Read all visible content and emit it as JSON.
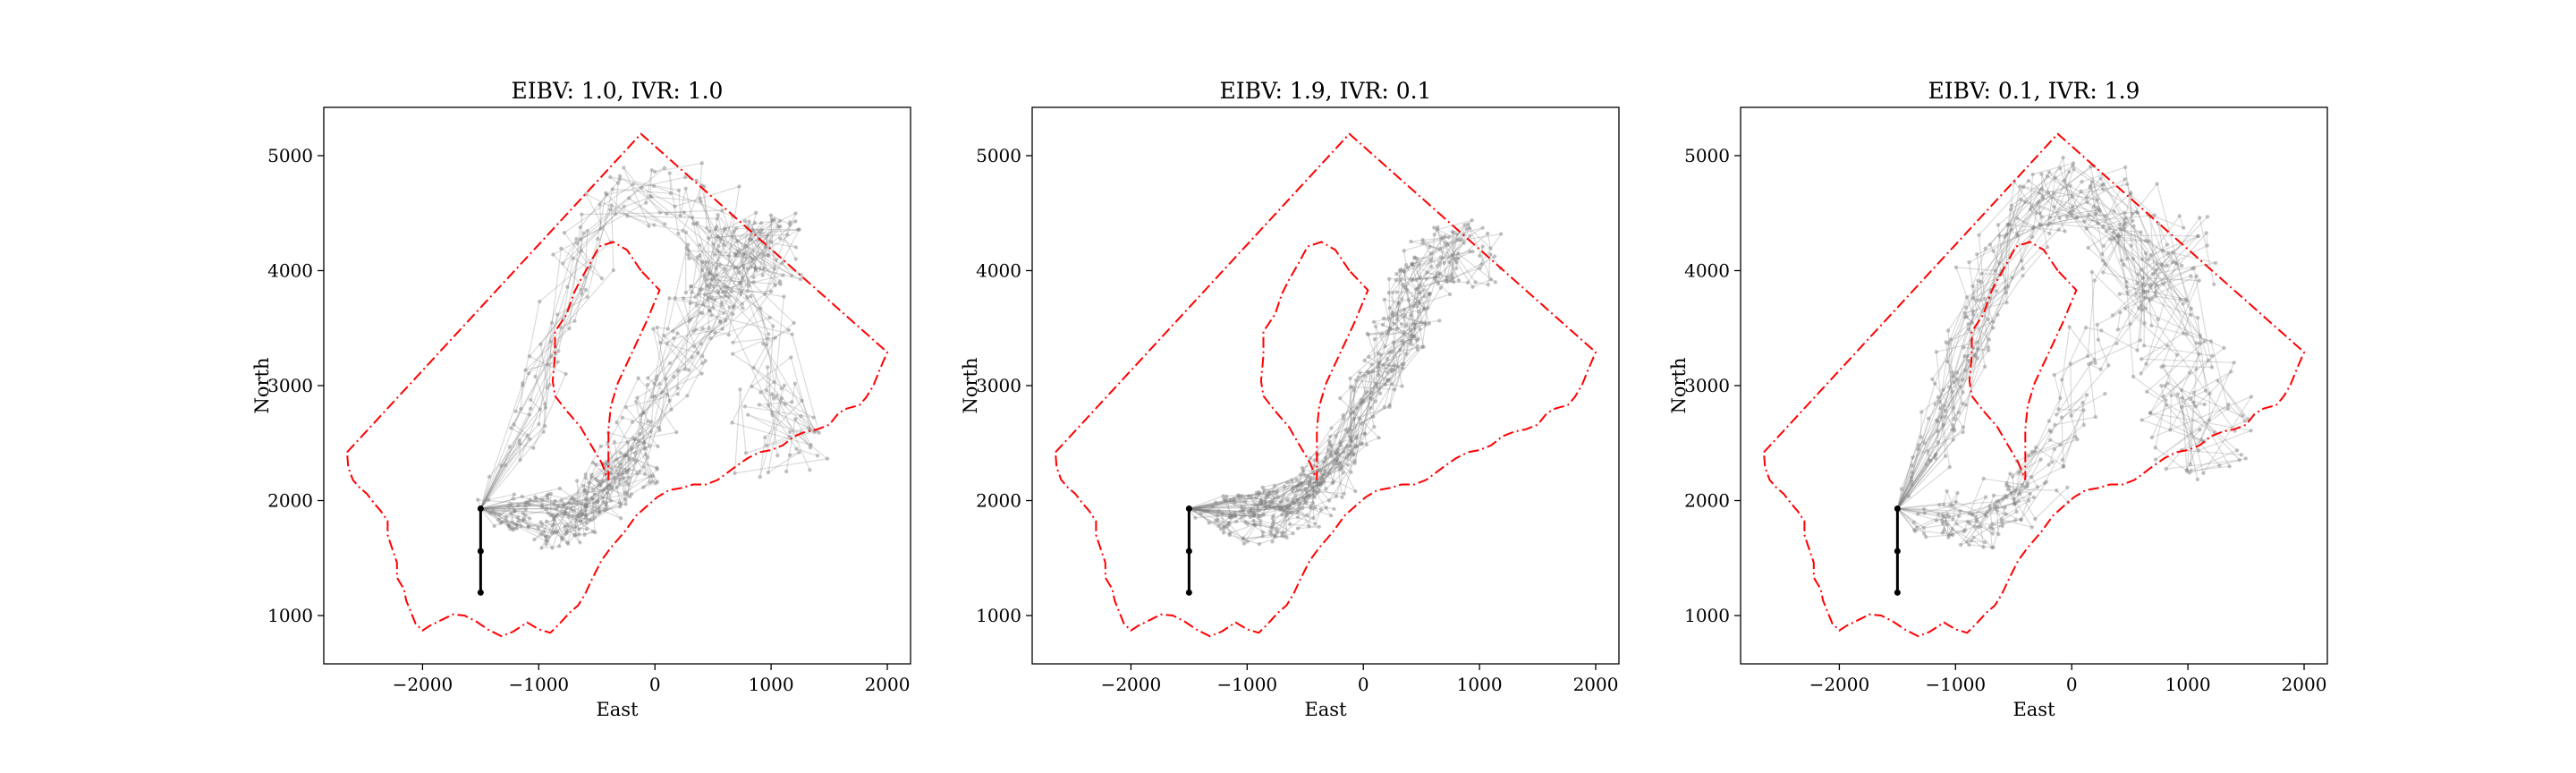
{
  "chart_data": [
    {
      "type": "line",
      "title": "EIBV: 1.0, IVR: 1.0",
      "xlabel": "East",
      "ylabel": "North",
      "xlim": [
        -2850,
        2200
      ],
      "ylim": [
        580,
        5420
      ],
      "xticks": [
        -2000,
        -1000,
        0,
        1000,
        2000
      ],
      "yticks": [
        1000,
        2000,
        3000,
        4000,
        5000
      ],
      "xticklabels": [
        "−2000",
        "−1000",
        "0",
        "1000",
        "2000"
      ],
      "yticklabels": [
        "1000",
        "2000",
        "3000",
        "4000",
        "5000"
      ],
      "grid": false,
      "trajectory_focus": "both-arms",
      "series": [
        {
          "kind": "boundary",
          "color": "#ff0000",
          "style": "dashdot"
        },
        {
          "kind": "island",
          "color": "#ff0000",
          "style": "dashdot"
        },
        {
          "kind": "start-path",
          "color": "#000000",
          "points": [
            [
              -1500,
              1200
            ],
            [
              -1500,
              1560
            ],
            [
              -1500,
              1930
            ]
          ]
        },
        {
          "kind": "trajectories",
          "color": "#808080"
        }
      ]
    },
    {
      "type": "line",
      "title": "EIBV: 1.9, IVR: 0.1",
      "xlabel": "East",
      "ylabel": "North",
      "xlim": [
        -2850,
        2200
      ],
      "ylim": [
        580,
        5420
      ],
      "xticks": [
        -2000,
        -1000,
        0,
        1000,
        2000
      ],
      "yticks": [
        1000,
        2000,
        3000,
        4000,
        5000
      ],
      "xticklabels": [
        "−2000",
        "−1000",
        "0",
        "1000",
        "2000"
      ],
      "yticklabels": [
        "1000",
        "2000",
        "3000",
        "4000",
        "5000"
      ],
      "grid": false,
      "trajectory_focus": "right-arm",
      "series": [
        {
          "kind": "boundary",
          "color": "#ff0000",
          "style": "dashdot"
        },
        {
          "kind": "island",
          "color": "#ff0000",
          "style": "dashdot"
        },
        {
          "kind": "start-path",
          "color": "#000000",
          "points": [
            [
              -1500,
              1200
            ],
            [
              -1500,
              1560
            ],
            [
              -1500,
              1930
            ]
          ]
        },
        {
          "kind": "trajectories",
          "color": "#808080"
        }
      ]
    },
    {
      "type": "line",
      "title": "EIBV: 0.1, IVR: 1.9",
      "xlabel": "East",
      "ylabel": "North",
      "xlim": [
        -2850,
        2200
      ],
      "ylim": [
        580,
        5420
      ],
      "xticks": [
        -2000,
        -1000,
        0,
        1000,
        2000
      ],
      "yticks": [
        1000,
        2000,
        3000,
        4000,
        5000
      ],
      "xticklabels": [
        "−2000",
        "−1000",
        "0",
        "1000",
        "2000"
      ],
      "yticklabels": [
        "1000",
        "2000",
        "3000",
        "4000",
        "5000"
      ],
      "grid": false,
      "trajectory_focus": "spread",
      "series": [
        {
          "kind": "boundary",
          "color": "#ff0000",
          "style": "dashdot"
        },
        {
          "kind": "island",
          "color": "#ff0000",
          "style": "dashdot"
        },
        {
          "kind": "start-path",
          "color": "#000000",
          "points": [
            [
              -1500,
              1200
            ],
            [
              -1500,
              1560
            ],
            [
              -1500,
              1930
            ]
          ]
        },
        {
          "kind": "trajectories",
          "color": "#808080"
        }
      ]
    }
  ]
}
